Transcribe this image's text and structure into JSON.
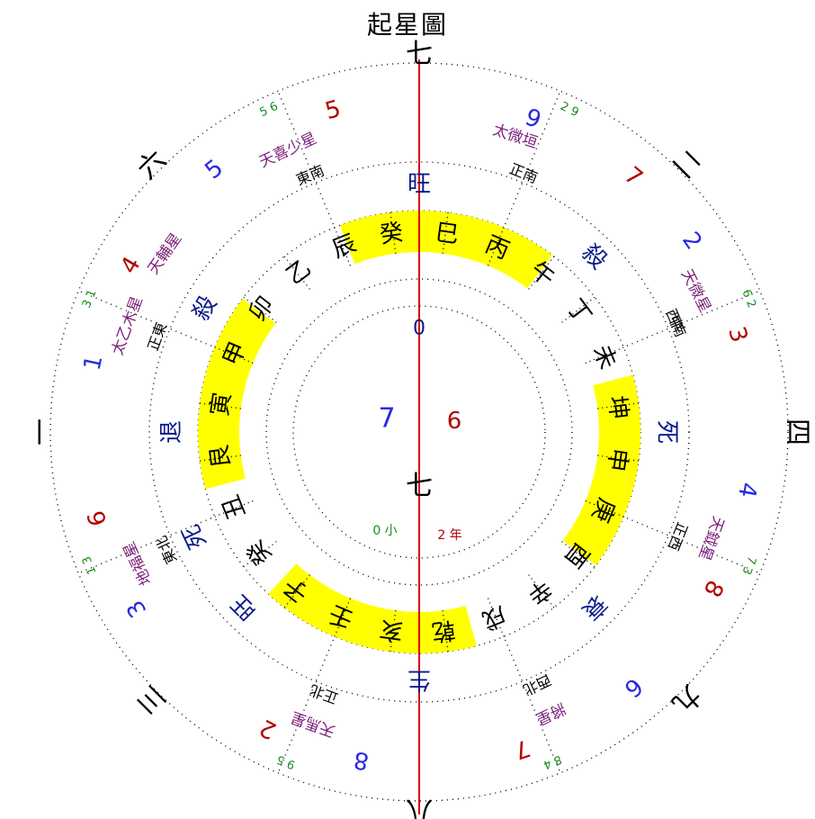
{
  "title": "起星圖",
  "top_banner": "",
  "colors": {
    "yellow": "#ffff00",
    "axis": "#d40000",
    "navy": "#0a1a8a",
    "purple": "#7a1f7a",
    "red": "#b30000",
    "blue": "#2a2ae0",
    "green": "#1a8a1a",
    "dots": "#000000"
  },
  "center": {
    "heading_digit": "0",
    "face": "七",
    "blue_number": "7",
    "red_number": "6",
    "left_small": "0 小",
    "right_small": "2 年"
  },
  "trigrams": [
    {
      "name": "九",
      "angle": 135
    },
    {
      "name": "一",
      "angle": 270
    },
    {
      "name": "二",
      "angle": 45
    },
    {
      "name": "三",
      "angle": 225
    },
    {
      "name": "四",
      "angle": 90
    },
    {
      "name": "八",
      "angle": 180
    },
    {
      "name": "七",
      "angle": 0
    },
    {
      "name": "六",
      "angle": 315
    }
  ],
  "inner_ring": [
    {
      "label": "癸",
      "angle": 352,
      "highlight": true
    },
    {
      "label": "巳",
      "angle": 8,
      "highlight": true
    },
    {
      "label": "丙",
      "angle": 23,
      "highlight": true
    },
    {
      "label": "午",
      "angle": 38
    },
    {
      "label": "丁",
      "angle": 53
    },
    {
      "label": "未",
      "angle": 68
    },
    {
      "label": "坤",
      "angle": 83,
      "highlight": true
    },
    {
      "label": "申",
      "angle": 98,
      "highlight": true
    },
    {
      "label": "庚",
      "angle": 113,
      "highlight": true
    },
    {
      "label": "酉",
      "angle": 128
    },
    {
      "label": "辛",
      "angle": 143
    },
    {
      "label": "戌",
      "angle": 158
    },
    {
      "label": "乾",
      "angle": 173,
      "highlight": true
    },
    {
      "label": "亥",
      "angle": 188,
      "highlight": true
    },
    {
      "label": "壬",
      "angle": 203,
      "highlight": true
    },
    {
      "label": "子",
      "angle": 218
    },
    {
      "label": "癸",
      "angle": 233
    },
    {
      "label": "丑",
      "angle": 248
    },
    {
      "label": "艮",
      "angle": 263,
      "highlight": true
    },
    {
      "label": "寅",
      "angle": 278,
      "highlight": true
    },
    {
      "label": "甲",
      "angle": 293,
      "highlight": true
    },
    {
      "label": "卯",
      "angle": 308
    },
    {
      "label": "乙",
      "angle": 323
    },
    {
      "label": "辰",
      "angle": 338
    }
  ],
  "status_words": [
    {
      "label": "旺",
      "angle": 0
    },
    {
      "label": "死",
      "angle": 90
    },
    {
      "label": "衰",
      "angle": 135
    },
    {
      "label": "生",
      "angle": 180
    },
    {
      "label": "旺",
      "angle": 225
    },
    {
      "label": "死",
      "angle": 245
    },
    {
      "label": "退",
      "angle": 270
    },
    {
      "label": "殺",
      "angle": 300
    },
    {
      "label": "殺",
      "angle": 45
    }
  ],
  "direction_labels": [
    {
      "text": "中",
      "angle": 67
    },
    {
      "text": "正東",
      "angle": 290
    },
    {
      "text": "東北",
      "angle": 245
    },
    {
      "text": "正北",
      "angle": 200
    },
    {
      "text": "西北",
      "angle": 155
    },
    {
      "text": "正西",
      "angle": 112
    },
    {
      "text": "西南",
      "angle": 67
    },
    {
      "text": "正南",
      "angle": 22
    },
    {
      "text": "東南",
      "angle": 337
    }
  ],
  "purple_texts": [
    {
      "text": "天輔星",
      "angle": 305
    },
    {
      "text": "太微垣",
      "angle": 18
    },
    {
      "text": "天微星",
      "angle": 63
    },
    {
      "text": "天鉞星",
      "angle": 110
    },
    {
      "text": "將星",
      "angle": 155
    },
    {
      "text": "天馬星",
      "angle": 200
    },
    {
      "text": "地福星",
      "angle": 245
    },
    {
      "text": "太乙木星",
      "angle": 290
    },
    {
      "text": "天喜少星",
      "angle": 335
    }
  ],
  "outer_numbers": [
    {
      "value": "9",
      "angle": 20,
      "color": "blue"
    },
    {
      "value": "7",
      "angle": 40,
      "color": "red"
    },
    {
      "value": "2",
      "angle": 55,
      "color": "blue"
    },
    {
      "value": "3",
      "angle": 73,
      "color": "red"
    },
    {
      "value": "4",
      "angle": 100,
      "color": "blue"
    },
    {
      "value": "8",
      "angle": 118,
      "color": "red"
    },
    {
      "value": "6",
      "angle": 140,
      "color": "blue"
    },
    {
      "value": "7",
      "angle": 162,
      "color": "red"
    },
    {
      "value": "8",
      "angle": 190,
      "color": "blue"
    },
    {
      "value": "2",
      "angle": 207,
      "color": "red"
    },
    {
      "value": "3",
      "angle": 238,
      "color": "blue"
    },
    {
      "value": "6",
      "angle": 255,
      "color": "red"
    },
    {
      "value": "1",
      "angle": 282,
      "color": "blue"
    },
    {
      "value": "4",
      "angle": 300,
      "color": "red"
    },
    {
      "value": "5",
      "angle": 322,
      "color": "blue"
    },
    {
      "value": "5",
      "angle": 345,
      "color": "red"
    }
  ],
  "small_pairs": [
    {
      "text": "5 6",
      "angle": 335
    },
    {
      "text": "2 9",
      "angle": 25
    },
    {
      "text": "6 2",
      "angle": 68
    },
    {
      "text": "7 3",
      "angle": 112
    },
    {
      "text": "8 4",
      "angle": 158
    },
    {
      "text": "9 5",
      "angle": 202
    },
    {
      "text": "1 3",
      "angle": 248
    },
    {
      "text": "3 1",
      "angle": 292
    }
  ]
}
